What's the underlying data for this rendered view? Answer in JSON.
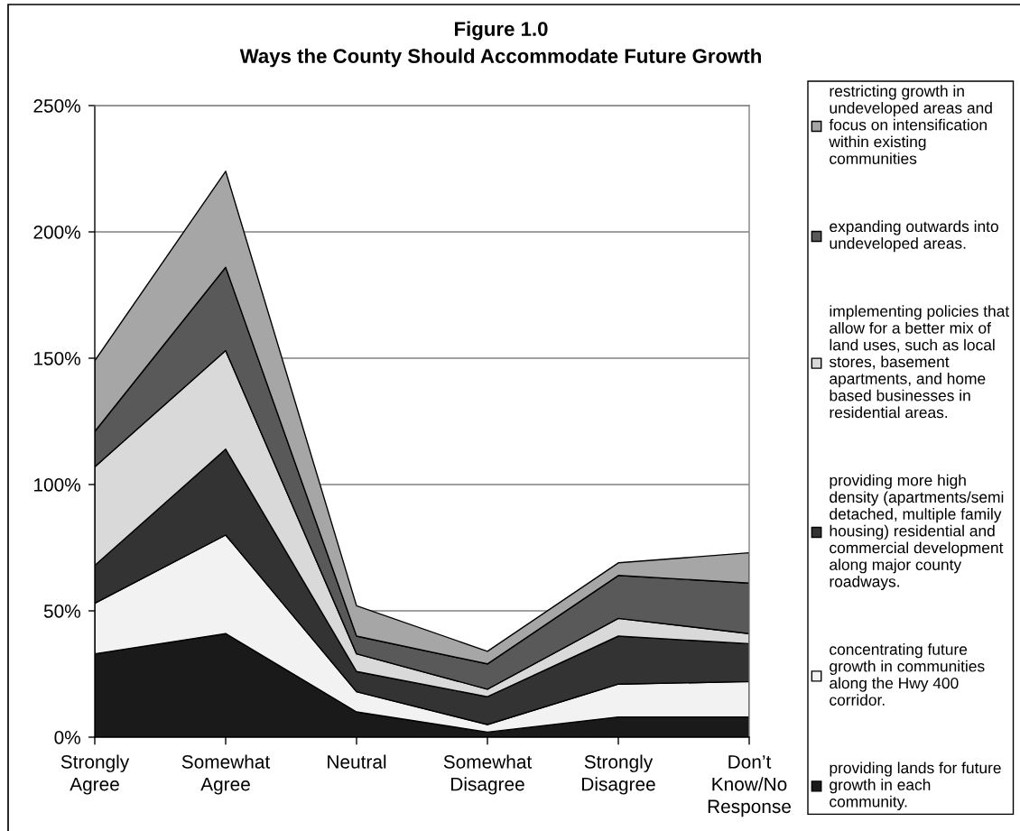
{
  "chart_data": {
    "type": "area",
    "title": "Figure 1.0",
    "subtitle": "Ways the County Should Accommodate Future Growth",
    "categories": [
      "Strongly\nAgree",
      "Somewhat\nAgree",
      "Neutral",
      "Somewhat\nDisagree",
      "Strongly\nDisagree",
      "Don’t\nKnow/No\nResponse"
    ],
    "stacked": true,
    "series": [
      {
        "name": "providing lands for future\ngrowth in each\ncommunity.",
        "color": "#1a1a1a",
        "values": [
          33,
          41,
          10,
          2,
          8,
          8
        ]
      },
      {
        "name": "concentrating future\ngrowth in communities\nalong the Hwy 400\ncorridor.",
        "color": "#f2f2f2",
        "values": [
          20,
          39,
          8,
          3,
          13,
          14
        ]
      },
      {
        "name": "providing more high\ndensity (apartments/semi\ndetached, multiple family\nhousing) residential and\ncommercial development\nalong major county\nroadways.",
        "color": "#333333",
        "values": [
          15,
          34,
          8,
          11,
          19,
          15
        ]
      },
      {
        "name": "implementing policies that\nallow for a better mix of\nland uses, such as local\nstores, basement\napartments, and home\nbased businesses in\nresidential areas.",
        "color": "#d9d9d9",
        "values": [
          39,
          39,
          7,
          3,
          7,
          4
        ]
      },
      {
        "name": "expanding outwards into\nundeveloped areas.",
        "color": "#595959",
        "values": [
          14,
          33,
          7,
          10,
          17,
          20
        ]
      },
      {
        "name": "restricting growth in\nundeveloped areas and\nfocus on intensification\nwithin existing\ncommunities",
        "color": "#a6a6a6",
        "values": [
          28,
          38,
          12,
          5,
          5,
          12
        ]
      }
    ],
    "ylim": [
      0,
      250
    ],
    "yticks": [
      {
        "value": 0,
        "label": "0%"
      },
      {
        "value": 50,
        "label": "50%"
      },
      {
        "value": 100,
        "label": "100%"
      },
      {
        "value": 150,
        "label": "150%"
      },
      {
        "value": 200,
        "label": "200%"
      },
      {
        "value": 250,
        "label": "250%"
      }
    ],
    "grid": "y",
    "legend": "right"
  }
}
